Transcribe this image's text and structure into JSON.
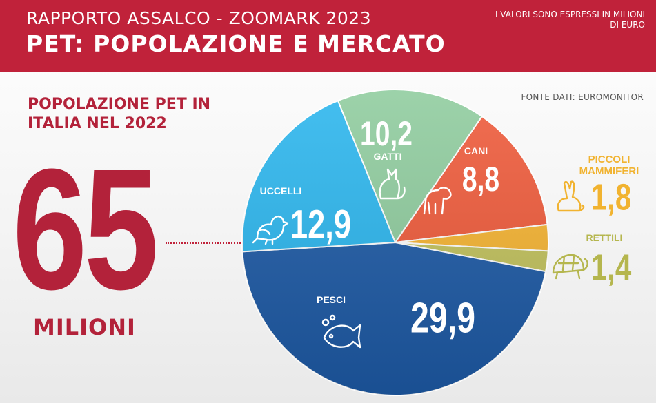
{
  "header": {
    "subtitle": "RAPPORTO ASSALCO - ZOOMARK 2023",
    "title": "PET: POPOLAZIONE E MERCATO",
    "note": "I VALORI  SONO ESPRESSI IN MILIONI DI EURO"
  },
  "source": "FONTE DATI: EUROMONITOR",
  "population": {
    "title": "POPOLAZIONE PET IN ITALIA NEL 2022",
    "value": "65",
    "unit": "MILIONI"
  },
  "chart_data": {
    "type": "pie",
    "title": "",
    "categories": [
      "GATTI",
      "CANI",
      "PICCOLI MAMMIFERI",
      "RETTILI",
      "PESCI",
      "UCCELLI"
    ],
    "values": [
      10.2,
      8.8,
      1.8,
      1.4,
      29.9,
      12.9
    ],
    "value_labels": [
      "10,2",
      "8,8",
      "1,8",
      "1,4",
      "29,9",
      "12,9"
    ],
    "colors": [
      "#8fcc9e",
      "#ef5a3a",
      "#f6b431",
      "#c2c25c",
      "#1d5aa6",
      "#2bb6ee"
    ],
    "icons": [
      "cat-icon",
      "dog-icon",
      "rabbit-icon",
      "turtle-icon",
      "fish-icon",
      "bird-icon"
    ]
  }
}
